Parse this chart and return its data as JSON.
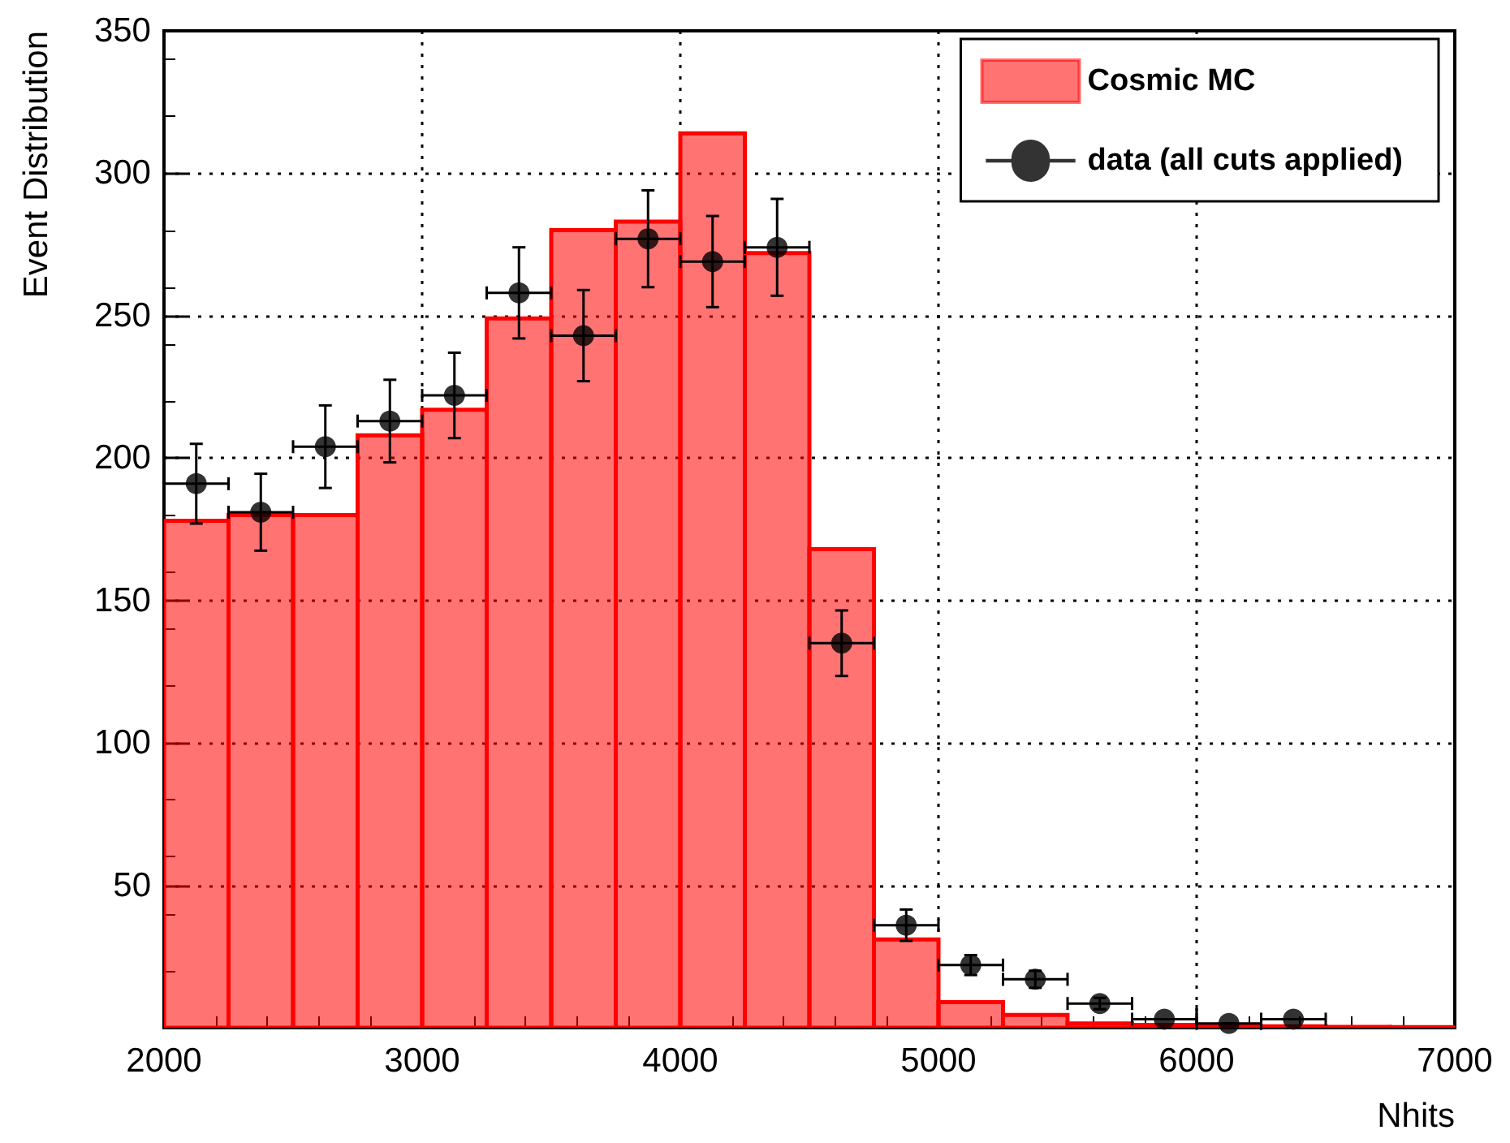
{
  "chart_data": {
    "type": "histogram",
    "xlabel": "Nhits",
    "ylabel": "Event Distribution",
    "xlim": [
      2000,
      7000
    ],
    "xticks": [
      2000,
      3000,
      4000,
      5000,
      6000,
      7000
    ],
    "ylim": [
      0,
      350
    ],
    "yticks": [
      {
        "value": 0,
        "label": null
      },
      50,
      100,
      150,
      200,
      250,
      300,
      350
    ],
    "grid": true,
    "legend": "top right",
    "series": [
      {
        "name": "Cosmic MC",
        "color": "#ff0000",
        "bins": [
          2000,
          2250,
          2500,
          2750,
          3000,
          3250,
          3500,
          3750,
          4000,
          4250,
          4500,
          4750,
          5000,
          5250,
          5500,
          5750,
          6000,
          6250,
          6500,
          6750,
          7000
        ],
        "values": [
          178,
          180,
          180,
          208,
          217,
          249,
          280,
          283,
          314,
          272,
          168,
          31,
          9,
          4.5,
          1.5,
          1,
          0.5,
          0.5,
          0.3,
          0.2
        ]
      },
      {
        "type": "scatter",
        "name": "data (all cuts applied)",
        "color": "#000000",
        "marker": "circle",
        "x": [
          2125,
          2375,
          2625,
          2875,
          3125,
          3375,
          3625,
          3875,
          4125,
          4375,
          4625,
          4875,
          5125,
          5375,
          5625,
          5875,
          6125,
          6375
        ],
        "values": [
          191,
          181,
          204,
          213,
          222,
          258,
          243,
          277,
          269,
          274,
          135,
          36,
          22,
          17,
          8.5,
          3,
          1.5,
          3
        ],
        "errors": [
          14,
          13.5,
          14.5,
          14.5,
          15,
          16,
          16,
          17,
          16,
          17,
          11.5,
          5.5,
          3.5,
          3,
          2,
          null,
          null,
          null
        ],
        "xerrors": [
          125,
          125,
          125,
          125,
          125,
          125,
          125,
          125,
          125,
          125,
          125,
          125,
          125,
          125,
          125,
          125,
          125,
          125
        ]
      }
    ]
  }
}
